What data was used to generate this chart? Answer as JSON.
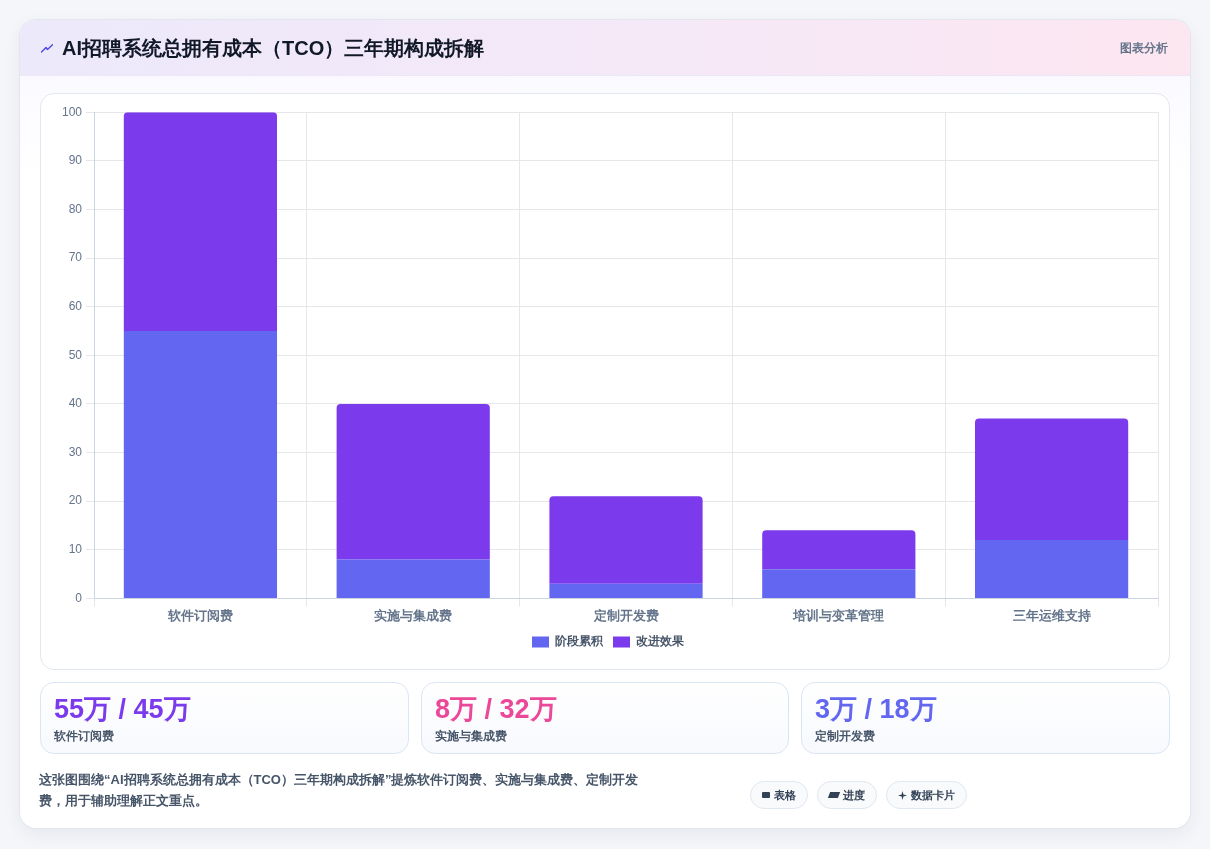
{
  "chart_data": [
    {
      "type": "bar",
      "title": "AI招聘系统总拥有成本（TCO）三年期构成拆解",
      "categories": [
        "软件订阅费",
        "实施与集成费",
        "定制开发费",
        "培训与变革管理",
        "三年运维支持"
      ],
      "series": [
        {
          "name": "阶段累积",
          "color": "#6366f1",
          "values": [
            55,
            8,
            3,
            6,
            12
          ]
        },
        {
          "name": "改进效果",
          "color": "#7c3aed",
          "values": [
            45,
            32,
            18,
            8,
            25
          ]
        }
      ],
      "stacked": true,
      "ylim": [
        0,
        100
      ],
      "yticks": [
        0,
        10,
        20,
        30,
        40,
        50,
        60,
        70,
        80,
        90,
        100
      ],
      "grid": true,
      "legend": "bottom",
      "annotations": [
        "图表分析",
        "这张图围绕“AI招聘系统总拥有成本（TCO）三年期构成拆解”提炼软件订阅费、实施与集成费、定制开发费，用于辅助理解正文重点。",
        "表格",
        "进度",
        "数据卡片"
      ]
    },
    {
      "type": "other",
      "title": "55万 / 45万",
      "subtitle": "软件订阅费",
      "color": "#7c3aed"
    },
    {
      "type": "other",
      "title": "8万 / 32万",
      "subtitle": "实施与集成费",
      "color": "#ec4899"
    },
    {
      "type": "other",
      "title": "3万 / 18万",
      "subtitle": "定制开发费",
      "color": "#6366f1"
    }
  ]
}
